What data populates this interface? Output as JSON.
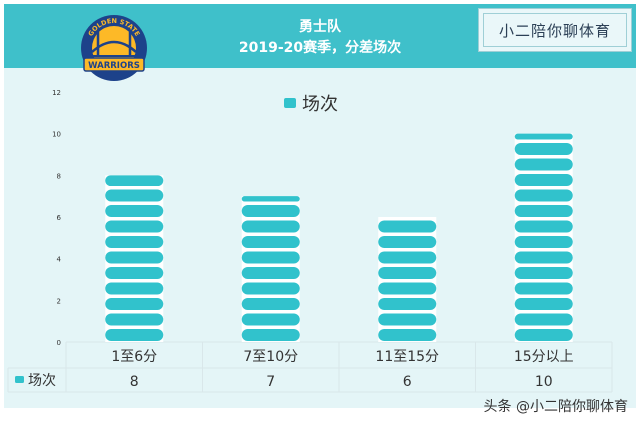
{
  "header": {
    "title_line1": "勇士队",
    "title_line2": "2019-20赛季，分差场次"
  },
  "stamp_text": "小二陪你聊体育",
  "logo": {
    "ring_text": "GOLDEN STATE",
    "team_text": "WARRIORS",
    "colors": {
      "blue": "#1d428a",
      "gold": "#fdb927"
    }
  },
  "watermark": "头条 @小二陪你聊体育",
  "colors": {
    "header": "#3fc0ca",
    "plot_bg": "#e4f5f7",
    "bar": "#31c2cc",
    "grid": "#d9e7ea",
    "axis_text": "#333333"
  },
  "chart_data": {
    "type": "bar",
    "categories": [
      "1至6分",
      "7至10分",
      "11至15分",
      "15分以上"
    ],
    "series": [
      {
        "name": "场次",
        "values": [
          8,
          7,
          6,
          10
        ]
      }
    ],
    "ylim": [
      0,
      12
    ],
    "yticks": [
      "0",
      "2",
      "4",
      "6",
      "8",
      "10",
      "12"
    ],
    "legend_position": "top-center",
    "data_table": true,
    "grid": false
  }
}
